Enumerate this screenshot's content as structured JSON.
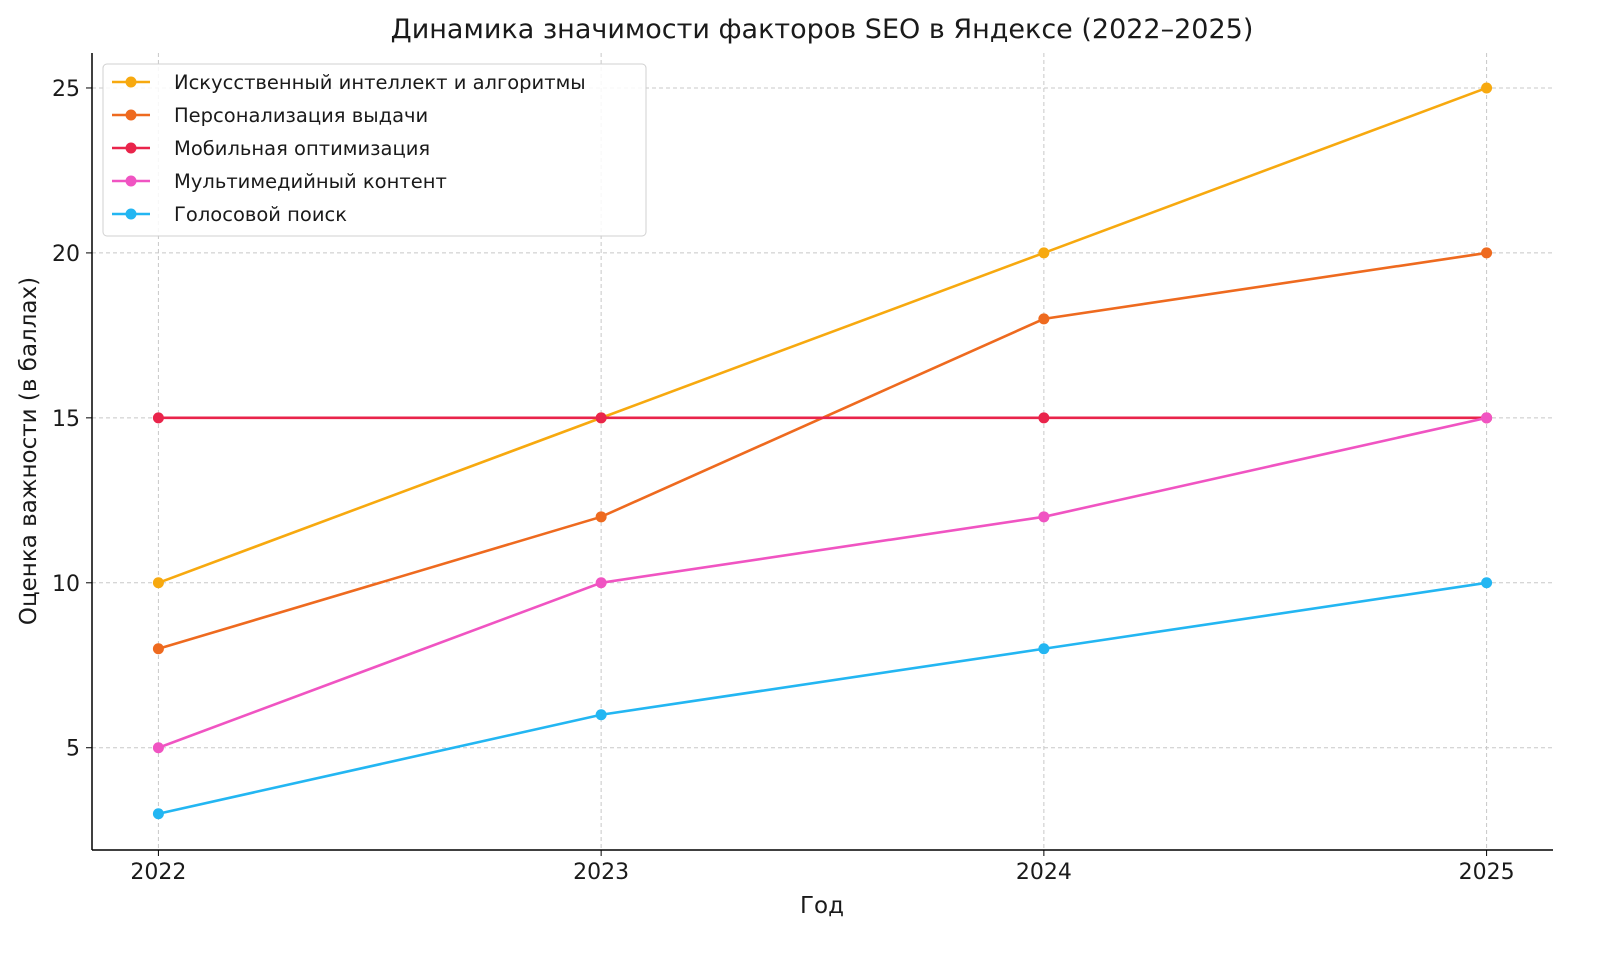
{
  "chart_data": {
    "type": "line",
    "title": "Динамика значимости факторов SEO в Яндексе (2022–2025)",
    "xlabel": "Год",
    "ylabel": "Оценка важности (в баллах)",
    "x": [
      2022,
      2023,
      2024,
      2025
    ],
    "x_tick_labels": [
      "2022",
      "2023",
      "2024",
      "2025"
    ],
    "y_ticks": [
      5,
      10,
      15,
      20,
      25
    ],
    "y_tick_labels": [
      "5",
      "10",
      "15",
      "20",
      "25"
    ],
    "xlim": [
      2021.85,
      2025.15
    ],
    "ylim": [
      1.9,
      26.06
    ],
    "grid": true,
    "legend_position": "top-left",
    "series": [
      {
        "name": "Искусственный интеллект и алгоритмы",
        "color": "#f7a90f",
        "values": [
          10,
          15,
          20,
          25
        ]
      },
      {
        "name": "Персонализация выдачи",
        "color": "#ee6a1f",
        "values": [
          8,
          12,
          18,
          20
        ]
      },
      {
        "name": "Мобильная оптимизация",
        "color": "#e9244b",
        "values": [
          15,
          15,
          15,
          15
        ]
      },
      {
        "name": "Мультимедийный контент",
        "color": "#f054c2",
        "values": [
          5,
          10,
          12,
          15
        ]
      },
      {
        "name": "Голосовой поиск",
        "color": "#23b6f2",
        "values": [
          3,
          6,
          8,
          10
        ]
      }
    ]
  }
}
